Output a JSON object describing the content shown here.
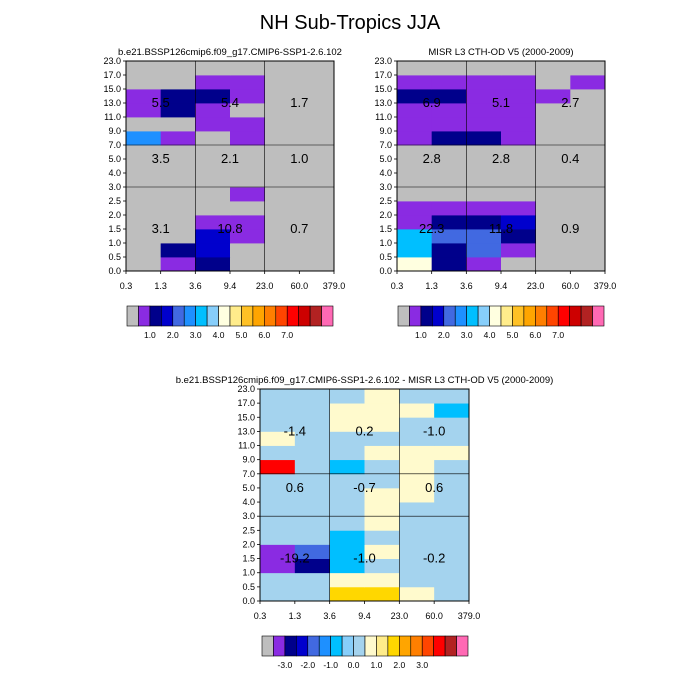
{
  "figure": {
    "title": "NH Sub-Tropics JJA"
  },
  "palettes": {
    "absolute": [
      "#bebebe",
      "#8a2be2",
      "#00008b",
      "#0000cd",
      "#4169e1",
      "#1e90ff",
      "#00bfff",
      "#87cefa",
      "#ffffe0",
      "#ffec8b",
      "#ffc125",
      "#ffa500",
      "#ff7f00",
      "#ff4500",
      "#ff0000",
      "#cd0000",
      "#b22222",
      "#ff69b4"
    ],
    "difference": [
      "#bebebe",
      "#8a2be2",
      "#00008b",
      "#0000cd",
      "#4169e1",
      "#1e90ff",
      "#00bfff",
      "#87cefa",
      "#a4d3ee",
      "#fffacd",
      "#ffec8b",
      "#ffd700",
      "#ffa500",
      "#ff7f00",
      "#ff4500",
      "#ff0000",
      "#b22222",
      "#ff69b4"
    ]
  },
  "chart_data": [
    {
      "type": "heatmap",
      "title": "b.e21.BSSP126cmip6.f09_g17.CMIP6-SSP1-2.6.102",
      "xlabel": "",
      "ylabel": "",
      "x_edges": [
        "0.3",
        "1.3",
        "3.6",
        "9.4",
        "23.0",
        "60.0",
        "379.0"
      ],
      "y_edges": [
        "0.0",
        "0.5",
        "1.0",
        "1.5",
        "2.0",
        "2.5",
        "3.0",
        "4.0",
        "5.0",
        "7.0",
        "9.0",
        "11.0",
        "13.0",
        "15.0",
        "17.0",
        "23.0"
      ],
      "palette": "absolute",
      "legend_labels": [
        "1.0",
        "2.0",
        "3.0",
        "4.0",
        "5.0",
        "6.0",
        "7.0"
      ],
      "cells": [
        [
          0,
          1,
          2,
          0,
          0,
          0
        ],
        [
          0,
          2,
          3,
          0,
          0,
          0
        ],
        [
          0,
          0,
          3,
          1,
          0,
          0
        ],
        [
          0,
          0,
          1,
          1,
          0,
          0
        ],
        [
          0,
          0,
          0,
          0,
          0,
          0
        ],
        [
          0,
          0,
          0,
          1,
          0,
          0
        ],
        [
          0,
          0,
          0,
          0,
          0,
          0
        ],
        [
          0,
          0,
          0,
          0,
          0,
          0
        ],
        [
          0,
          0,
          0,
          0,
          0,
          0
        ],
        [
          5,
          1,
          0,
          1,
          0,
          0
        ],
        [
          0,
          0,
          1,
          1,
          0,
          0
        ],
        [
          1,
          2,
          1,
          0,
          0,
          0
        ],
        [
          1,
          2,
          2,
          1,
          0,
          0
        ],
        [
          0,
          0,
          1,
          1,
          0,
          0
        ],
        [
          0,
          0,
          0,
          0,
          0,
          0
        ]
      ],
      "annotations": [
        {
          "value": "3.1",
          "x": 1.3,
          "y": 1.5
        },
        {
          "value": "10.8",
          "x": 9.4,
          "y": 1.5
        },
        {
          "value": "0.7",
          "x": 60.0,
          "y": 1.5
        },
        {
          "value": "3.5",
          "x": 1.3,
          "y": 5.0
        },
        {
          "value": "2.1",
          "x": 9.4,
          "y": 5.0
        },
        {
          "value": "1.0",
          "x": 60.0,
          "y": 5.0
        },
        {
          "value": "5.5",
          "x": 1.3,
          "y": 13.0
        },
        {
          "value": "5.4",
          "x": 9.4,
          "y": 13.0
        },
        {
          "value": "1.7",
          "x": 60.0,
          "y": 13.0
        }
      ]
    },
    {
      "type": "heatmap",
      "title": "MISR L3 CTH-OD V5 (2000-2009)",
      "xlabel": "",
      "ylabel": "",
      "x_edges": [
        "0.3",
        "1.3",
        "3.6",
        "9.4",
        "23.0",
        "60.0",
        "379.0"
      ],
      "y_edges": [
        "0.0",
        "0.5",
        "1.0",
        "1.5",
        "2.0",
        "2.5",
        "3.0",
        "4.0",
        "5.0",
        "7.0",
        "9.0",
        "11.0",
        "13.0",
        "15.0",
        "17.0",
        "23.0"
      ],
      "palette": "absolute",
      "legend_labels": [
        "1.0",
        "2.0",
        "3.0",
        "4.0",
        "5.0",
        "6.0",
        "7.0"
      ],
      "cells": [
        [
          8,
          2,
          1,
          0,
          0,
          0
        ],
        [
          6,
          2,
          4,
          1,
          0,
          0
        ],
        [
          6,
          4,
          4,
          2,
          0,
          0
        ],
        [
          1,
          2,
          2,
          3,
          0,
          0
        ],
        [
          1,
          1,
          1,
          1,
          0,
          0
        ],
        [
          0,
          0,
          0,
          0,
          0,
          0
        ],
        [
          0,
          0,
          0,
          0,
          0,
          0
        ],
        [
          0,
          0,
          0,
          0,
          0,
          0
        ],
        [
          0,
          0,
          0,
          0,
          0,
          0
        ],
        [
          1,
          2,
          2,
          1,
          0,
          0
        ],
        [
          1,
          1,
          1,
          1,
          0,
          0
        ],
        [
          1,
          1,
          1,
          1,
          0,
          0
        ],
        [
          2,
          2,
          1,
          1,
          1,
          0
        ],
        [
          1,
          1,
          1,
          1,
          0,
          1
        ],
        [
          0,
          0,
          0,
          0,
          0,
          0
        ]
      ],
      "annotations": [
        {
          "value": "22.3",
          "x": 1.3,
          "y": 1.5
        },
        {
          "value": "11.8",
          "x": 9.4,
          "y": 1.5
        },
        {
          "value": "0.9",
          "x": 60.0,
          "y": 1.5
        },
        {
          "value": "2.8",
          "x": 1.3,
          "y": 5.0
        },
        {
          "value": "2.8",
          "x": 9.4,
          "y": 5.0
        },
        {
          "value": "0.4",
          "x": 60.0,
          "y": 5.0
        },
        {
          "value": "6.9",
          "x": 1.3,
          "y": 13.0
        },
        {
          "value": "5.1",
          "x": 9.4,
          "y": 13.0
        },
        {
          "value": "2.7",
          "x": 60.0,
          "y": 13.0
        }
      ]
    },
    {
      "type": "heatmap",
      "title": "b.e21.BSSP126cmip6.f09_g17.CMIP6-SSP1-2.6.102 - MISR L3 CTH-OD V5 (2000-2009)",
      "xlabel": "",
      "ylabel": "",
      "x_edges": [
        "0.3",
        "1.3",
        "3.6",
        "9.4",
        "23.0",
        "60.0",
        "379.0"
      ],
      "y_edges": [
        "0.0",
        "0.5",
        "1.0",
        "1.5",
        "2.0",
        "2.5",
        "3.0",
        "4.0",
        "5.0",
        "7.0",
        "9.0",
        "11.0",
        "13.0",
        "15.0",
        "17.0",
        "23.0"
      ],
      "palette": "difference",
      "legend_labels": [
        "-3.0",
        "-2.0",
        "-1.0",
        "0.0",
        "1.0",
        "2.0",
        "3.0"
      ],
      "cells": [
        [
          8,
          8,
          11,
          11,
          9,
          8
        ],
        [
          8,
          8,
          9,
          9,
          8,
          8
        ],
        [
          1,
          2,
          6,
          8,
          8,
          8
        ],
        [
          1,
          4,
          6,
          9,
          8,
          8
        ],
        [
          8,
          8,
          6,
          8,
          8,
          8
        ],
        [
          8,
          8,
          8,
          9,
          8,
          8
        ],
        [
          8,
          8,
          8,
          9,
          8,
          8
        ],
        [
          8,
          8,
          8,
          9,
          9,
          8
        ],
        [
          8,
          8,
          8,
          8,
          9,
          8
        ],
        [
          15,
          8,
          6,
          8,
          9,
          8
        ],
        [
          8,
          8,
          8,
          9,
          9,
          9
        ],
        [
          9,
          8,
          8,
          8,
          8,
          8
        ],
        [
          8,
          8,
          9,
          9,
          8,
          8
        ],
        [
          8,
          8,
          9,
          9,
          9,
          6
        ],
        [
          8,
          8,
          8,
          9,
          8,
          8
        ]
      ],
      "annotations": [
        {
          "value": "-19.2",
          "x": 1.3,
          "y": 1.5
        },
        {
          "value": "-1.0",
          "x": 9.4,
          "y": 1.5
        },
        {
          "value": "-0.2",
          "x": 60.0,
          "y": 1.5
        },
        {
          "value": "0.6",
          "x": 1.3,
          "y": 5.0
        },
        {
          "value": "-0.7",
          "x": 9.4,
          "y": 5.0
        },
        {
          "value": "0.6",
          "x": 60.0,
          "y": 5.0
        },
        {
          "value": "-1.4",
          "x": 1.3,
          "y": 13.0
        },
        {
          "value": "0.2",
          "x": 9.4,
          "y": 13.0
        },
        {
          "value": "-1.0",
          "x": 60.0,
          "y": 13.0
        }
      ]
    }
  ]
}
